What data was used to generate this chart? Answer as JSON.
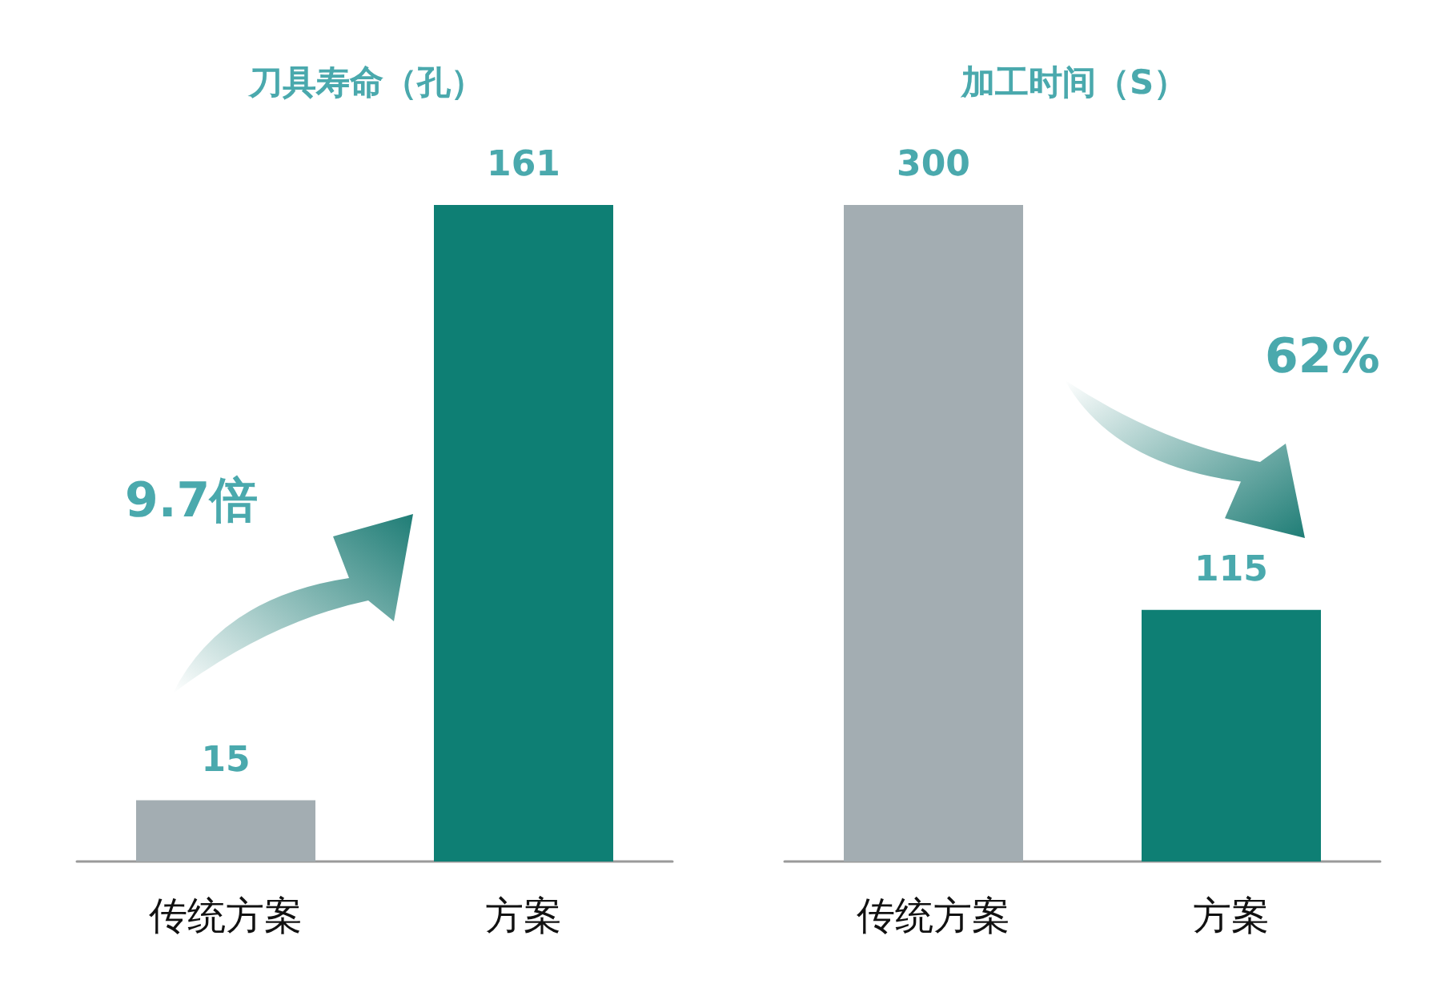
{
  "chart_data": [
    {
      "type": "bar",
      "title": "刀具寿命（孔）",
      "categories": [
        "传统方案",
        "方案"
      ],
      "values": [
        15,
        161
      ],
      "colors": [
        "#a3adb2",
        "#0e7f74"
      ],
      "data_labels": true,
      "annotations": [
        "9.7倍"
      ]
    },
    {
      "type": "bar",
      "title": "加工时间（S）",
      "categories": [
        "传统方案",
        "方案"
      ],
      "values": [
        300,
        115
      ],
      "colors": [
        "#a3adb2",
        "#0e7f74"
      ],
      "data_labels": true,
      "annotations": [
        "62%"
      ]
    }
  ]
}
